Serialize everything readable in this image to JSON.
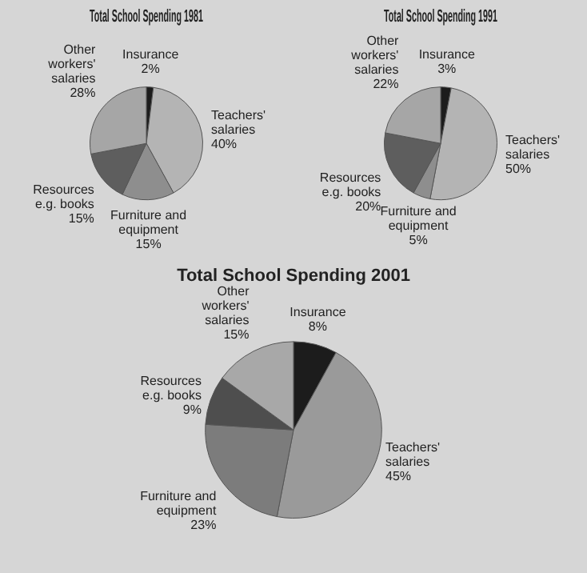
{
  "chart_data": [
    {
      "type": "pie",
      "title": "Total School Spending 1981",
      "categories": [
        "Insurance",
        "Teachers' salaries",
        "Furniture and equipment",
        "Resources e.g. books",
        "Other workers' salaries"
      ],
      "values": [
        2,
        40,
        15,
        15,
        28
      ],
      "colors": [
        "#1c1c1c",
        "#b4b4b4",
        "#8e8e8e",
        "#5e5e5e",
        "#a6a6a6"
      ],
      "value_labels": [
        "2%",
        "40%",
        "15%",
        "15%",
        "28%"
      ]
    },
    {
      "type": "pie",
      "title": "Total School Spending 1991",
      "categories": [
        "Insurance",
        "Teachers' salaries",
        "Furniture and equipment",
        "Resources e.g. books",
        "Other workers' salaries"
      ],
      "values": [
        3,
        50,
        5,
        20,
        22
      ],
      "colors": [
        "#1c1c1c",
        "#b4b4b4",
        "#8e8e8e",
        "#5e5e5e",
        "#a6a6a6"
      ],
      "value_labels": [
        "3%",
        "50%",
        "5%",
        "20%",
        "22%"
      ]
    },
    {
      "type": "pie",
      "title": "Total School Spending 2001",
      "categories": [
        "Insurance",
        "Teachers' salaries",
        "Furniture and equipment",
        "Resources e.g. books",
        "Other workers' salaries"
      ],
      "values": [
        8,
        45,
        23,
        9,
        15
      ],
      "colors": [
        "#1c1c1c",
        "#9a9a9a",
        "#7c7c7c",
        "#4e4e4e",
        "#a8a8a8"
      ],
      "value_labels": [
        "8%",
        "45%",
        "23%",
        "9%",
        "15%"
      ]
    }
  ]
}
